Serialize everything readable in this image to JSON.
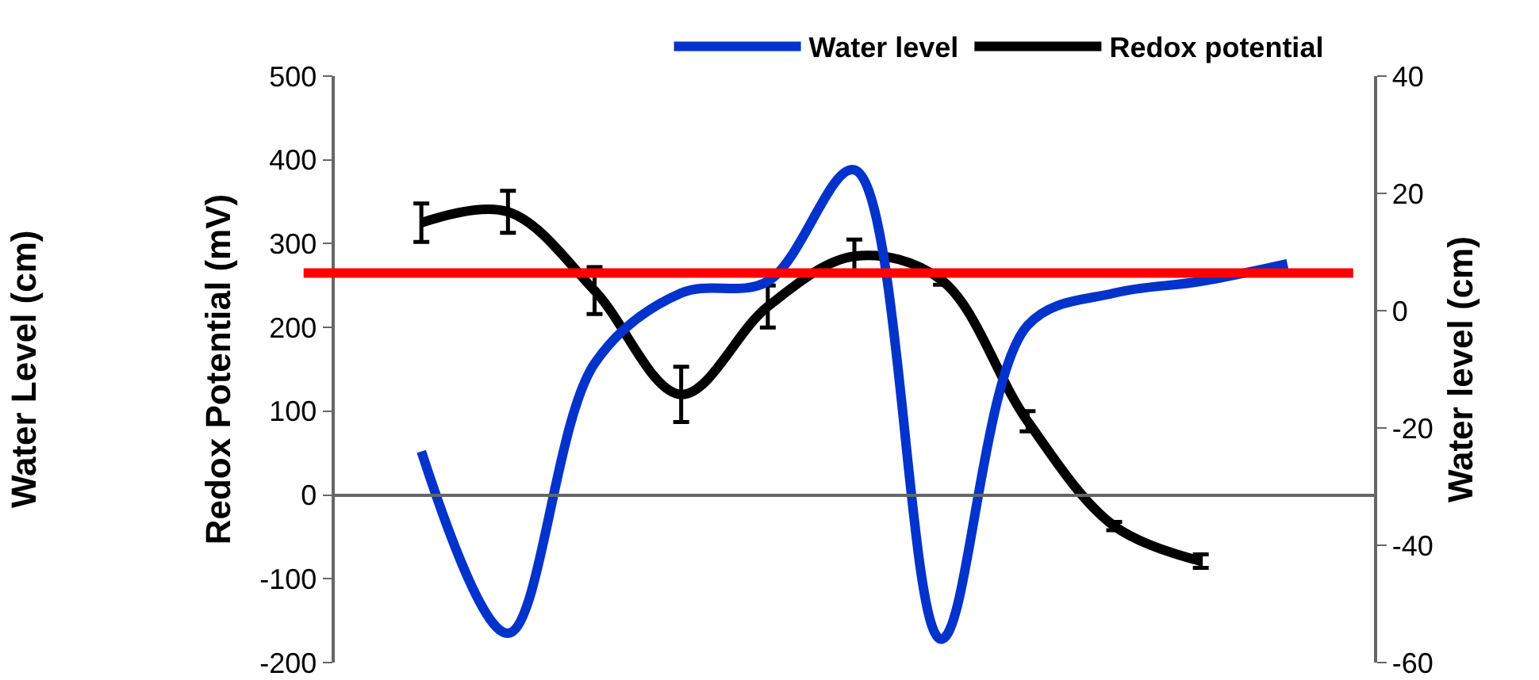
{
  "chart_data": {
    "type": "line",
    "categories": [
      null,
      null,
      null,
      null,
      null,
      null,
      null,
      null,
      null,
      null,
      null
    ],
    "series": [
      {
        "name": "Water level",
        "color": "#0033cc",
        "axis": "y2",
        "values": [
          -24,
          -55,
          -9,
          3,
          5,
          24,
          -56,
          -2.5,
          3,
          5,
          8
        ]
      },
      {
        "name": "Redox potential",
        "color": "#000000",
        "values": [
          325,
          338,
          244,
          120,
          225,
          285,
          257,
          88,
          -37,
          -79,
          null
        ],
        "errors": [
          23,
          25,
          28,
          33,
          25,
          20,
          6,
          12,
          5,
          8,
          null
        ]
      }
    ],
    "ylabel": "Redox Potential (mV)",
    "y2label": "Water level (cm)",
    "ylim": [
      -200,
      500
    ],
    "yticks": [
      -200,
      -100,
      0,
      100,
      200,
      300,
      400,
      500
    ],
    "y2lim": [
      -60,
      40
    ],
    "y2ticks": [
      -60,
      -40,
      -20,
      0,
      20,
      40
    ],
    "ref_lines": [
      {
        "axis": "y",
        "value": 265,
        "color": "#ff0000"
      }
    ],
    "annotations": [
      "Water Level (cm)"
    ],
    "legend": "top right"
  }
}
